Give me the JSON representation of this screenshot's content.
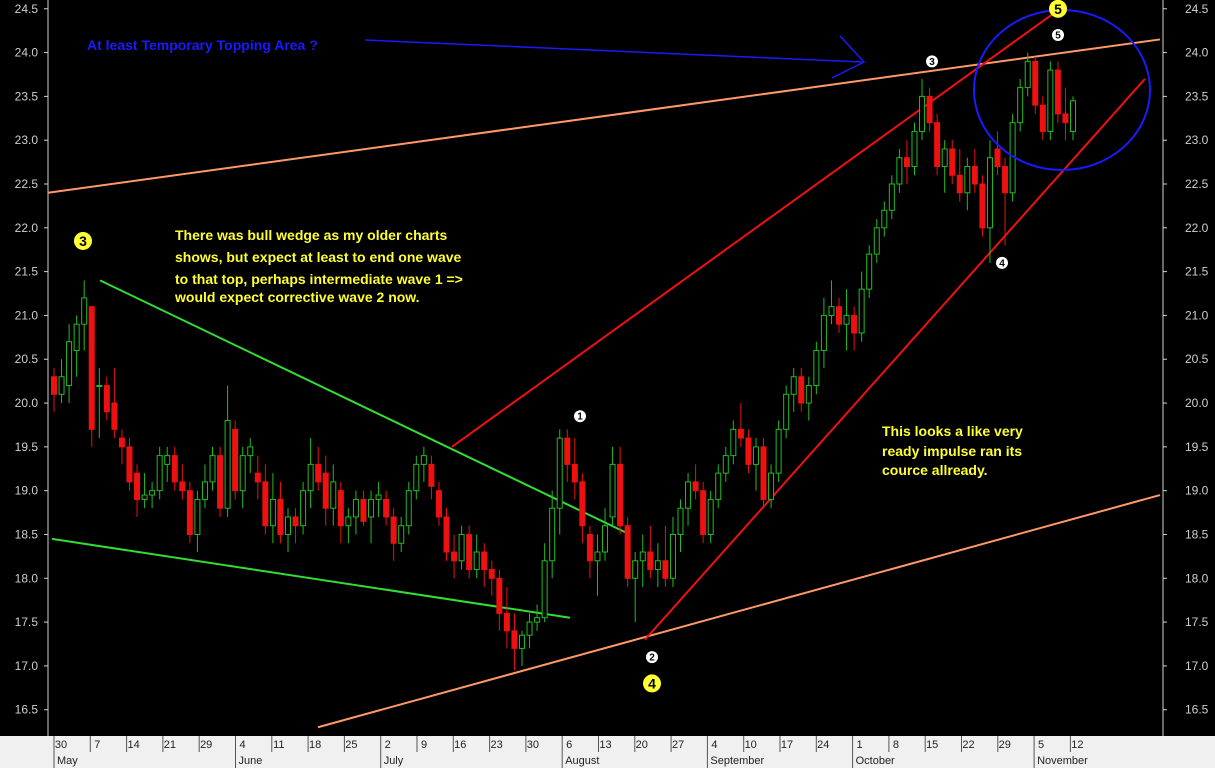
{
  "chart_data": {
    "type": "candlestick",
    "ylim": [
      16.2,
      24.6
    ],
    "y_ticks": [
      "16.5",
      "17.0",
      "17.5",
      "18.0",
      "18.5",
      "19.0",
      "19.5",
      "20.0",
      "20.5",
      "21.0",
      "21.5",
      "22.0",
      "22.5",
      "23.0",
      "23.5",
      "24.0",
      "24.5"
    ],
    "x_ticks": [
      "30",
      "7",
      "14",
      "21",
      "29",
      "4",
      "11",
      "18",
      "25",
      "2",
      "9",
      "16",
      "23",
      "30",
      "6",
      "13",
      "20",
      "27",
      "4",
      "10",
      "17",
      "24",
      "1",
      "8",
      "15",
      "22",
      "29",
      "5",
      "12"
    ],
    "months": [
      "May",
      "June",
      "July",
      "August",
      "September",
      "October",
      "November"
    ],
    "colors": {
      "up": "#22bb22",
      "down": "#ee1111",
      "background": "#000000",
      "axis_bar": "#f0f0f0"
    },
    "candles": [
      {
        "o": 20.3,
        "h": 20.4,
        "l": 19.9,
        "c": 20.1
      },
      {
        "o": 20.1,
        "h": 20.5,
        "l": 20.0,
        "c": 20.3
      },
      {
        "o": 20.2,
        "h": 20.9,
        "l": 20.0,
        "c": 20.7
      },
      {
        "o": 20.6,
        "h": 21.0,
        "l": 20.3,
        "c": 20.9
      },
      {
        "o": 20.9,
        "h": 21.4,
        "l": 20.6,
        "c": 21.2
      },
      {
        "o": 21.1,
        "h": 21.1,
        "l": 19.5,
        "c": 19.7
      },
      {
        "o": 20.2,
        "h": 20.4,
        "l": 19.6,
        "c": 20.2
      },
      {
        "o": 20.2,
        "h": 20.3,
        "l": 19.8,
        "c": 19.9
      },
      {
        "o": 20.0,
        "h": 20.4,
        "l": 19.6,
        "c": 19.7
      },
      {
        "o": 19.6,
        "h": 19.7,
        "l": 19.3,
        "c": 19.5
      },
      {
        "o": 19.5,
        "h": 19.6,
        "l": 19.0,
        "c": 19.1
      },
      {
        "o": 19.2,
        "h": 19.3,
        "l": 18.7,
        "c": 18.9
      },
      {
        "o": 18.9,
        "h": 19.2,
        "l": 18.8,
        "c": 18.95
      },
      {
        "o": 18.95,
        "h": 19.1,
        "l": 18.8,
        "c": 19.0
      },
      {
        "o": 19.0,
        "h": 19.5,
        "l": 18.9,
        "c": 19.4
      },
      {
        "o": 19.3,
        "h": 19.5,
        "l": 19.1,
        "c": 19.4
      },
      {
        "o": 19.4,
        "h": 19.5,
        "l": 19.0,
        "c": 19.1
      },
      {
        "o": 19.1,
        "h": 19.3,
        "l": 18.9,
        "c": 19.0
      },
      {
        "o": 19.0,
        "h": 19.1,
        "l": 18.4,
        "c": 18.5
      },
      {
        "o": 18.5,
        "h": 19.0,
        "l": 18.3,
        "c": 18.9
      },
      {
        "o": 18.9,
        "h": 19.3,
        "l": 18.8,
        "c": 19.1
      },
      {
        "o": 19.1,
        "h": 19.5,
        "l": 19.0,
        "c": 19.4
      },
      {
        "o": 19.4,
        "h": 19.5,
        "l": 18.7,
        "c": 18.8
      },
      {
        "o": 18.8,
        "h": 20.2,
        "l": 18.7,
        "c": 19.8
      },
      {
        "o": 19.7,
        "h": 19.8,
        "l": 18.9,
        "c": 19.0
      },
      {
        "o": 19.0,
        "h": 19.5,
        "l": 18.8,
        "c": 19.4
      },
      {
        "o": 19.4,
        "h": 19.6,
        "l": 19.2,
        "c": 19.5
      },
      {
        "o": 19.2,
        "h": 19.4,
        "l": 18.9,
        "c": 19.1
      },
      {
        "o": 19.1,
        "h": 19.3,
        "l": 18.5,
        "c": 18.6
      },
      {
        "o": 18.6,
        "h": 19.2,
        "l": 18.4,
        "c": 18.9
      },
      {
        "o": 18.9,
        "h": 19.1,
        "l": 18.4,
        "c": 18.5
      },
      {
        "o": 18.5,
        "h": 18.8,
        "l": 18.3,
        "c": 18.7
      },
      {
        "o": 18.7,
        "h": 18.8,
        "l": 18.4,
        "c": 18.6
      },
      {
        "o": 18.6,
        "h": 19.1,
        "l": 18.5,
        "c": 19.0
      },
      {
        "o": 19.0,
        "h": 19.6,
        "l": 18.8,
        "c": 19.3
      },
      {
        "o": 19.3,
        "h": 19.5,
        "l": 19.0,
        "c": 19.1
      },
      {
        "o": 19.2,
        "h": 19.4,
        "l": 18.6,
        "c": 18.8
      },
      {
        "o": 18.8,
        "h": 19.3,
        "l": 18.6,
        "c": 19.1
      },
      {
        "o": 19.0,
        "h": 19.1,
        "l": 18.4,
        "c": 18.6
      },
      {
        "o": 18.6,
        "h": 18.8,
        "l": 18.4,
        "c": 18.7
      },
      {
        "o": 18.7,
        "h": 19.0,
        "l": 18.5,
        "c": 18.9
      },
      {
        "o": 18.9,
        "h": 19.0,
        "l": 18.6,
        "c": 18.65
      },
      {
        "o": 18.7,
        "h": 19.0,
        "l": 18.4,
        "c": 18.9
      },
      {
        "o": 18.9,
        "h": 19.1,
        "l": 18.7,
        "c": 18.95
      },
      {
        "o": 18.9,
        "h": 19.0,
        "l": 18.6,
        "c": 18.7
      },
      {
        "o": 18.7,
        "h": 18.8,
        "l": 18.2,
        "c": 18.4
      },
      {
        "o": 18.4,
        "h": 18.7,
        "l": 18.3,
        "c": 18.6
      },
      {
        "o": 18.6,
        "h": 19.1,
        "l": 18.5,
        "c": 19.0
      },
      {
        "o": 19.0,
        "h": 19.4,
        "l": 18.9,
        "c": 19.3
      },
      {
        "o": 19.3,
        "h": 19.5,
        "l": 19.1,
        "c": 19.4
      },
      {
        "o": 19.3,
        "h": 19.4,
        "l": 18.9,
        "c": 19.05
      },
      {
        "o": 19.0,
        "h": 19.1,
        "l": 18.6,
        "c": 18.7
      },
      {
        "o": 18.7,
        "h": 18.8,
        "l": 18.2,
        "c": 18.3
      },
      {
        "o": 18.3,
        "h": 18.5,
        "l": 18.0,
        "c": 18.2
      },
      {
        "o": 18.2,
        "h": 18.6,
        "l": 18.1,
        "c": 18.5
      },
      {
        "o": 18.5,
        "h": 18.6,
        "l": 18.0,
        "c": 18.1
      },
      {
        "o": 18.1,
        "h": 18.5,
        "l": 18.0,
        "c": 18.3
      },
      {
        "o": 18.3,
        "h": 18.4,
        "l": 17.9,
        "c": 18.1
      },
      {
        "o": 18.1,
        "h": 18.2,
        "l": 17.8,
        "c": 18.0
      },
      {
        "o": 18.0,
        "h": 18.1,
        "l": 17.4,
        "c": 17.6
      },
      {
        "o": 17.6,
        "h": 17.9,
        "l": 17.2,
        "c": 17.4
      },
      {
        "o": 17.4,
        "h": 17.6,
        "l": 16.95,
        "c": 17.2
      },
      {
        "o": 17.2,
        "h": 17.4,
        "l": 17.0,
        "c": 17.35
      },
      {
        "o": 17.35,
        "h": 17.6,
        "l": 17.2,
        "c": 17.5
      },
      {
        "o": 17.5,
        "h": 17.7,
        "l": 17.4,
        "c": 17.55
      },
      {
        "o": 17.55,
        "h": 18.4,
        "l": 17.5,
        "c": 18.2
      },
      {
        "o": 18.2,
        "h": 19.0,
        "l": 18.0,
        "c": 18.8
      },
      {
        "o": 18.8,
        "h": 19.7,
        "l": 18.5,
        "c": 19.6
      },
      {
        "o": 19.6,
        "h": 19.7,
        "l": 19.1,
        "c": 19.3
      },
      {
        "o": 19.3,
        "h": 19.6,
        "l": 18.9,
        "c": 19.1
      },
      {
        "o": 19.1,
        "h": 19.2,
        "l": 18.4,
        "c": 18.6
      },
      {
        "o": 18.5,
        "h": 18.6,
        "l": 18.0,
        "c": 18.2
      },
      {
        "o": 18.2,
        "h": 18.5,
        "l": 17.8,
        "c": 18.3
      },
      {
        "o": 18.3,
        "h": 18.8,
        "l": 18.2,
        "c": 18.6
      },
      {
        "o": 18.7,
        "h": 19.5,
        "l": 18.6,
        "c": 19.3
      },
      {
        "o": 19.3,
        "h": 19.5,
        "l": 18.5,
        "c": 18.6
      },
      {
        "o": 18.6,
        "h": 18.7,
        "l": 17.9,
        "c": 18.0
      },
      {
        "o": 18.0,
        "h": 18.3,
        "l": 17.5,
        "c": 18.2
      },
      {
        "o": 18.2,
        "h": 18.5,
        "l": 17.9,
        "c": 18.3
      },
      {
        "o": 18.3,
        "h": 18.6,
        "l": 18.0,
        "c": 18.1
      },
      {
        "o": 18.1,
        "h": 18.4,
        "l": 17.9,
        "c": 18.2
      },
      {
        "o": 18.2,
        "h": 18.6,
        "l": 17.9,
        "c": 18.0
      },
      {
        "o": 18.0,
        "h": 18.7,
        "l": 17.9,
        "c": 18.5
      },
      {
        "o": 18.5,
        "h": 18.9,
        "l": 18.3,
        "c": 18.8
      },
      {
        "o": 18.8,
        "h": 19.2,
        "l": 18.6,
        "c": 19.1
      },
      {
        "o": 19.1,
        "h": 19.3,
        "l": 18.9,
        "c": 19.0
      },
      {
        "o": 19.0,
        "h": 19.1,
        "l": 18.4,
        "c": 18.5
      },
      {
        "o": 18.5,
        "h": 19.0,
        "l": 18.4,
        "c": 18.9
      },
      {
        "o": 18.9,
        "h": 19.3,
        "l": 18.8,
        "c": 19.2
      },
      {
        "o": 19.2,
        "h": 19.5,
        "l": 19.1,
        "c": 19.4
      },
      {
        "o": 19.4,
        "h": 19.8,
        "l": 19.3,
        "c": 19.7
      },
      {
        "o": 19.7,
        "h": 20.0,
        "l": 19.5,
        "c": 19.6
      },
      {
        "o": 19.6,
        "h": 19.7,
        "l": 19.2,
        "c": 19.3
      },
      {
        "o": 19.3,
        "h": 19.6,
        "l": 19.0,
        "c": 19.5
      },
      {
        "o": 19.5,
        "h": 19.6,
        "l": 18.8,
        "c": 18.9
      },
      {
        "o": 18.9,
        "h": 19.3,
        "l": 18.8,
        "c": 19.2
      },
      {
        "o": 19.2,
        "h": 19.8,
        "l": 19.1,
        "c": 19.7
      },
      {
        "o": 19.7,
        "h": 20.2,
        "l": 19.6,
        "c": 20.1
      },
      {
        "o": 20.1,
        "h": 20.4,
        "l": 19.9,
        "c": 20.3
      },
      {
        "o": 20.3,
        "h": 20.4,
        "l": 19.9,
        "c": 20.0
      },
      {
        "o": 20.0,
        "h": 20.3,
        "l": 19.8,
        "c": 20.2
      },
      {
        "o": 20.2,
        "h": 20.7,
        "l": 20.1,
        "c": 20.6
      },
      {
        "o": 20.6,
        "h": 21.2,
        "l": 20.4,
        "c": 21.0
      },
      {
        "o": 21.0,
        "h": 21.4,
        "l": 20.9,
        "c": 21.1
      },
      {
        "o": 21.1,
        "h": 21.2,
        "l": 20.8,
        "c": 20.9
      },
      {
        "o": 20.9,
        "h": 21.3,
        "l": 20.6,
        "c": 21.0
      },
      {
        "o": 21.0,
        "h": 21.1,
        "l": 20.6,
        "c": 20.8
      },
      {
        "o": 20.8,
        "h": 21.5,
        "l": 20.7,
        "c": 21.3
      },
      {
        "o": 21.3,
        "h": 21.8,
        "l": 21.2,
        "c": 21.7
      },
      {
        "o": 21.7,
        "h": 22.1,
        "l": 21.6,
        "c": 22.0
      },
      {
        "o": 22.0,
        "h": 22.3,
        "l": 21.9,
        "c": 22.2
      },
      {
        "o": 22.2,
        "h": 22.6,
        "l": 22.1,
        "c": 22.5
      },
      {
        "o": 22.5,
        "h": 22.9,
        "l": 22.4,
        "c": 22.8
      },
      {
        "o": 22.8,
        "h": 23.0,
        "l": 22.5,
        "c": 22.7
      },
      {
        "o": 22.7,
        "h": 23.2,
        "l": 22.6,
        "c": 23.1
      },
      {
        "o": 23.1,
        "h": 23.7,
        "l": 23.0,
        "c": 23.5
      },
      {
        "o": 23.5,
        "h": 23.6,
        "l": 23.1,
        "c": 23.2
      },
      {
        "o": 23.2,
        "h": 23.3,
        "l": 22.6,
        "c": 22.7
      },
      {
        "o": 22.7,
        "h": 23.0,
        "l": 22.4,
        "c": 22.9
      },
      {
        "o": 22.9,
        "h": 23.0,
        "l": 22.5,
        "c": 22.6
      },
      {
        "o": 22.6,
        "h": 22.9,
        "l": 22.3,
        "c": 22.4
      },
      {
        "o": 22.4,
        "h": 22.8,
        "l": 22.2,
        "c": 22.7
      },
      {
        "o": 22.7,
        "h": 22.9,
        "l": 22.4,
        "c": 22.5
      },
      {
        "o": 22.5,
        "h": 22.6,
        "l": 21.9,
        "c": 22.0
      },
      {
        "o": 22.0,
        "h": 23.0,
        "l": 21.6,
        "c": 22.8
      },
      {
        "o": 22.9,
        "h": 23.1,
        "l": 22.6,
        "c": 22.7
      },
      {
        "o": 22.7,
        "h": 22.8,
        "l": 21.8,
        "c": 22.4
      },
      {
        "o": 22.4,
        "h": 23.3,
        "l": 22.3,
        "c": 23.2
      },
      {
        "o": 23.2,
        "h": 23.7,
        "l": 23.1,
        "c": 23.6
      },
      {
        "o": 23.6,
        "h": 24.0,
        "l": 23.5,
        "c": 23.9
      },
      {
        "o": 23.9,
        "h": 23.95,
        "l": 23.3,
        "c": 23.4
      },
      {
        "o": 23.4,
        "h": 23.5,
        "l": 23.0,
        "c": 23.1
      },
      {
        "o": 23.1,
        "h": 23.9,
        "l": 23.0,
        "c": 23.8
      },
      {
        "o": 23.8,
        "h": 23.9,
        "l": 23.2,
        "c": 23.3
      },
      {
        "o": 23.3,
        "h": 23.6,
        "l": 23.0,
        "c": 23.2
      },
      {
        "o": 23.1,
        "h": 23.5,
        "l": 23.0,
        "c": 23.45
      }
    ],
    "trendlines": [
      {
        "color": "#ff9966",
        "x1": 48,
        "y1": 22.4,
        "x2": 1160,
        "y2": 24.15
      },
      {
        "color": "#ff9966",
        "x1": 318,
        "y1": 16.3,
        "x2": 1160,
        "y2": 18.95
      },
      {
        "color": "#33dd33",
        "x1": 100,
        "y1": 21.4,
        "x2": 630,
        "y2": 18.5
      },
      {
        "color": "#33dd33",
        "x1": 52,
        "y1": 18.45,
        "x2": 570,
        "y2": 17.55
      },
      {
        "color": "#ee1111",
        "x1": 452,
        "y1": 19.5,
        "x2": 1060,
        "y2": 24.5
      },
      {
        "color": "#ee1111",
        "x1": 645,
        "y1": 17.3,
        "x2": 1145,
        "y2": 23.7
      }
    ],
    "wave_labels": [
      {
        "text": "3",
        "x": 83,
        "y": 21.85,
        "style": "yellow"
      },
      {
        "text": "1",
        "x": 580,
        "y": 19.85,
        "style": "white"
      },
      {
        "text": "2",
        "x": 652,
        "y": 17.1,
        "style": "white"
      },
      {
        "text": "4",
        "x": 652,
        "y": 16.8,
        "style": "yellow"
      },
      {
        "text": "3",
        "x": 932,
        "y": 23.9,
        "style": "white"
      },
      {
        "text": "4",
        "x": 1002,
        "y": 21.6,
        "style": "white"
      },
      {
        "text": "5",
        "x": 1058,
        "y": 24.2,
        "style": "white"
      },
      {
        "text": "5",
        "x": 1058,
        "y": 24.5,
        "style": "yellow"
      }
    ],
    "annotations": {
      "topping": "At least Temporary Topping Area ?",
      "wedge": [
        "There was bull wedge as my older charts",
        "shows, but expect at least to end one wave",
        "to that top, perhaps intermediate wave 1 =>",
        "would expect corrective wave 2 now."
      ],
      "impulse": [
        "This looks a like very",
        "ready impulse ran its",
        "cource allready."
      ]
    }
  }
}
